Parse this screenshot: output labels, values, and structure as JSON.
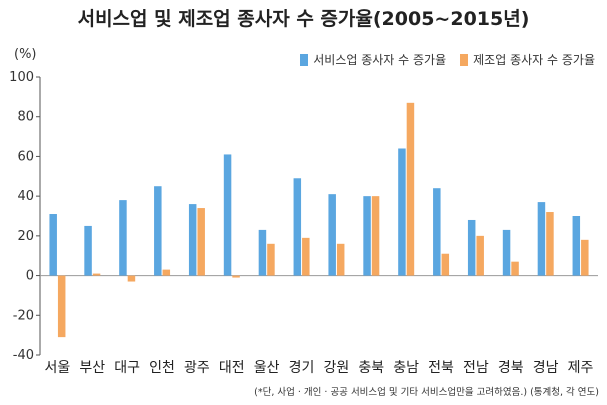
{
  "chart_data": {
    "type": "bar",
    "title": "서비스업 및 제조업 종사자 수 증가율(2005~2015년)",
    "unit": "(%)",
    "ylim": [
      -40,
      100
    ],
    "yticks": [
      -40,
      -20,
      0,
      20,
      40,
      60,
      80,
      100
    ],
    "grid": false,
    "legend_position": "top-right",
    "categories": [
      "서울",
      "부산",
      "대구",
      "인천",
      "광주",
      "대전",
      "울산",
      "경기",
      "강원",
      "충북",
      "충남",
      "전북",
      "전남",
      "경북",
      "경남",
      "제주"
    ],
    "series": [
      {
        "name": "서비스업 종사자 수 증가율",
        "color": "#5aa6e0",
        "values": [
          31,
          25,
          38,
          45,
          36,
          61,
          23,
          49,
          41,
          40,
          64,
          44,
          28,
          23,
          37,
          30
        ]
      },
      {
        "name": "제조업 종사자 수 증가율",
        "color": "#f5a860",
        "values": [
          -31,
          1,
          -3,
          3,
          34,
          -1,
          16,
          19,
          16,
          40,
          87,
          11,
          20,
          7,
          32,
          18
        ]
      }
    ],
    "footnote": "(*단, 사업 · 개인 · 공공 서비스업 및 기타 서비스업만을 고려하였음.) (통계청, 각 연도)"
  }
}
